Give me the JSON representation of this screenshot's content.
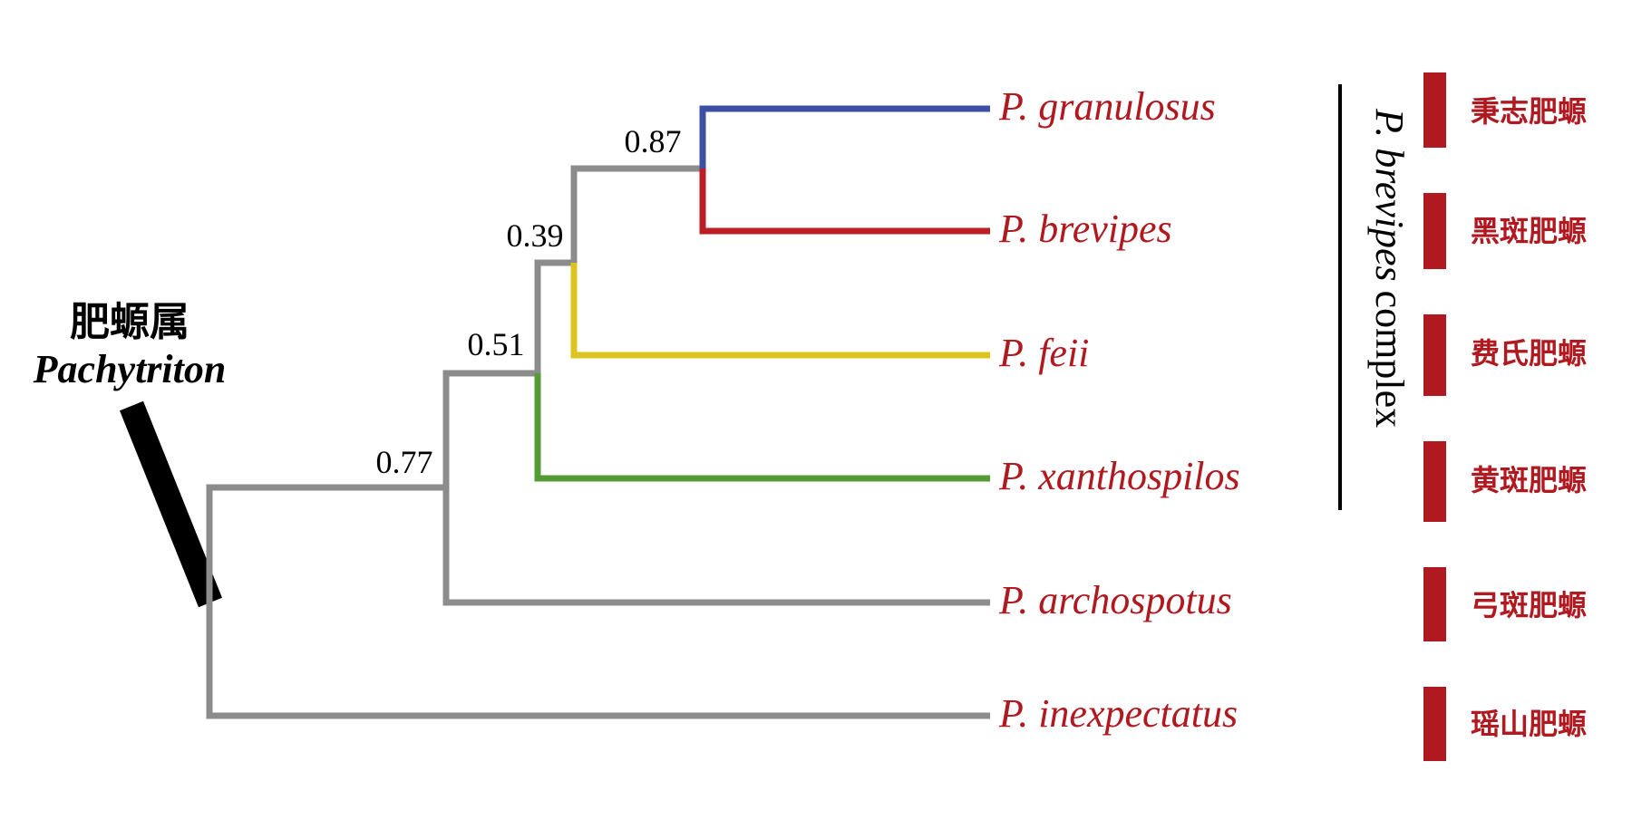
{
  "genus": {
    "chinese_name": "肥螈属",
    "latin_name": "Pachytriton"
  },
  "complex_label": {
    "italic_part": "P. brevipes",
    "plain_part": "complex"
  },
  "support_values": [
    "0.77",
    "0.51",
    "0.39",
    "0.87"
  ],
  "taxa": [
    {
      "latin": "P. granulosus",
      "chinese": "秉志肥螈",
      "branch_color": "#3d4fa3"
    },
    {
      "latin": "P. brevipes",
      "chinese": "黑斑肥螈",
      "branch_color": "#bb1e24"
    },
    {
      "latin": "P. feii",
      "chinese": "费氏肥螈",
      "branch_color": "#dcc31f"
    },
    {
      "latin": "P. xanthospilos",
      "chinese": "黄斑肥螈",
      "branch_color": "#549b35"
    },
    {
      "latin": "P. archospotus",
      "chinese": "弓斑肥螈",
      "branch_color": "#8c8c8c"
    },
    {
      "latin": "P. inexpectatus",
      "chinese": "瑶山肥螈",
      "branch_color": "#8c8c8c"
    }
  ],
  "colors": {
    "internal_branch": "#8c8c8c",
    "label_red": "#b0191f",
    "marker_red": "#b0191f",
    "genus_bar": "#000000"
  }
}
